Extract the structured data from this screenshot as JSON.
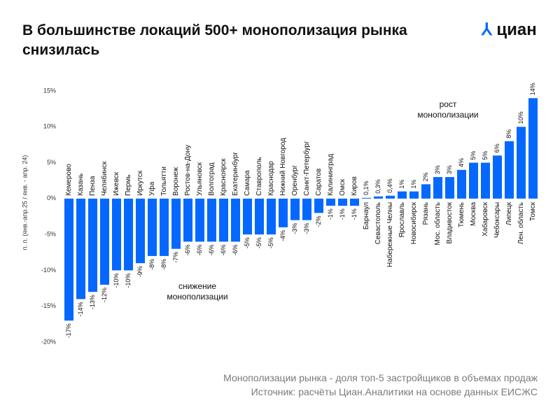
{
  "header": {
    "title": "В большинстве локаций 500+ монополизация рынка снизилась",
    "logo": "циан"
  },
  "chart_data": {
    "type": "bar",
    "y_label": "п. п. (янв.-апр.25 / янв. - апр. 24)",
    "categories": [
      "Кемерово",
      "Казань",
      "Пенза",
      "Челябинск",
      "Ижевск",
      "Пермь",
      "Иркутск",
      "Уфа",
      "Тольятти",
      "Воронеж",
      "Ростов-на-Дону",
      "Ульяновск",
      "Волгоград",
      "Красноярск",
      "Екатеринбург",
      "Самара",
      "Ставрополь",
      "Краснодар",
      "Нижний Новгород",
      "Оренбург",
      "Санкт-Петербург",
      "Саратов",
      "Калининград",
      "Омск",
      "Киров",
      "Барнаул",
      "Севастополь",
      "Набережные Челны",
      "Ярославль",
      "Новосибирск",
      "Рязань",
      "Мос. область",
      "Владивосток",
      "Тюмень",
      "Москва",
      "Хабаровск",
      "Чебоксары",
      "Липецк",
      "Лен. область",
      "Томск"
    ],
    "values": [
      -17,
      -14,
      -13,
      -12,
      -10,
      -10,
      -9,
      -8,
      -8,
      -7,
      -6,
      -6,
      -6,
      -6,
      -6,
      -5,
      -5,
      -5,
      -4,
      -3,
      -3,
      -2,
      -1,
      -1,
      -1,
      0.1,
      0.3,
      0.4,
      1,
      1,
      2,
      3,
      3,
      4,
      5,
      5,
      6,
      8,
      10,
      14
    ],
    "value_labels": [
      "-17%",
      "-14%",
      "-13%",
      "-12%",
      "-10%",
      "-10%",
      "-9%",
      "-8%",
      "-8%",
      "-7%",
      "-6%",
      "-6%",
      "-6%",
      "-6%",
      "-6%",
      "-5%",
      "-5%",
      "-5%",
      "-4%",
      "-3%",
      "-3%",
      "-2%",
      "-1%",
      "-1%",
      "-1%",
      "0,1%",
      "0,3%",
      "0,4%",
      "1%",
      "1%",
      "2%",
      "3%",
      "3%",
      "4%",
      "5%",
      "5%",
      "6%",
      "8%",
      "10%",
      "14%"
    ],
    "color": "#0468ff",
    "ylim": [
      -20,
      15
    ],
    "yticks": [
      {
        "value": -20,
        "label": "-20%"
      },
      {
        "value": -15,
        "label": "-15%"
      },
      {
        "value": -10,
        "label": "-10%"
      },
      {
        "value": -5,
        "label": "-5%"
      },
      {
        "value": 0,
        "label": "0%"
      },
      {
        "value": 5,
        "label": "5%"
      },
      {
        "value": 10,
        "label": "10%"
      },
      {
        "value": 15,
        "label": "15%"
      }
    ],
    "annotations": [
      [
        "рост",
        "монополизации"
      ],
      [
        "снижение",
        "монополизации"
      ]
    ]
  },
  "footer": [
    "Монополизации рынка - доля топ-5 застройщиков в объемах продаж",
    "Источник: расчёты Циан.Аналитики на основе  данных ЕИСЖС"
  ]
}
